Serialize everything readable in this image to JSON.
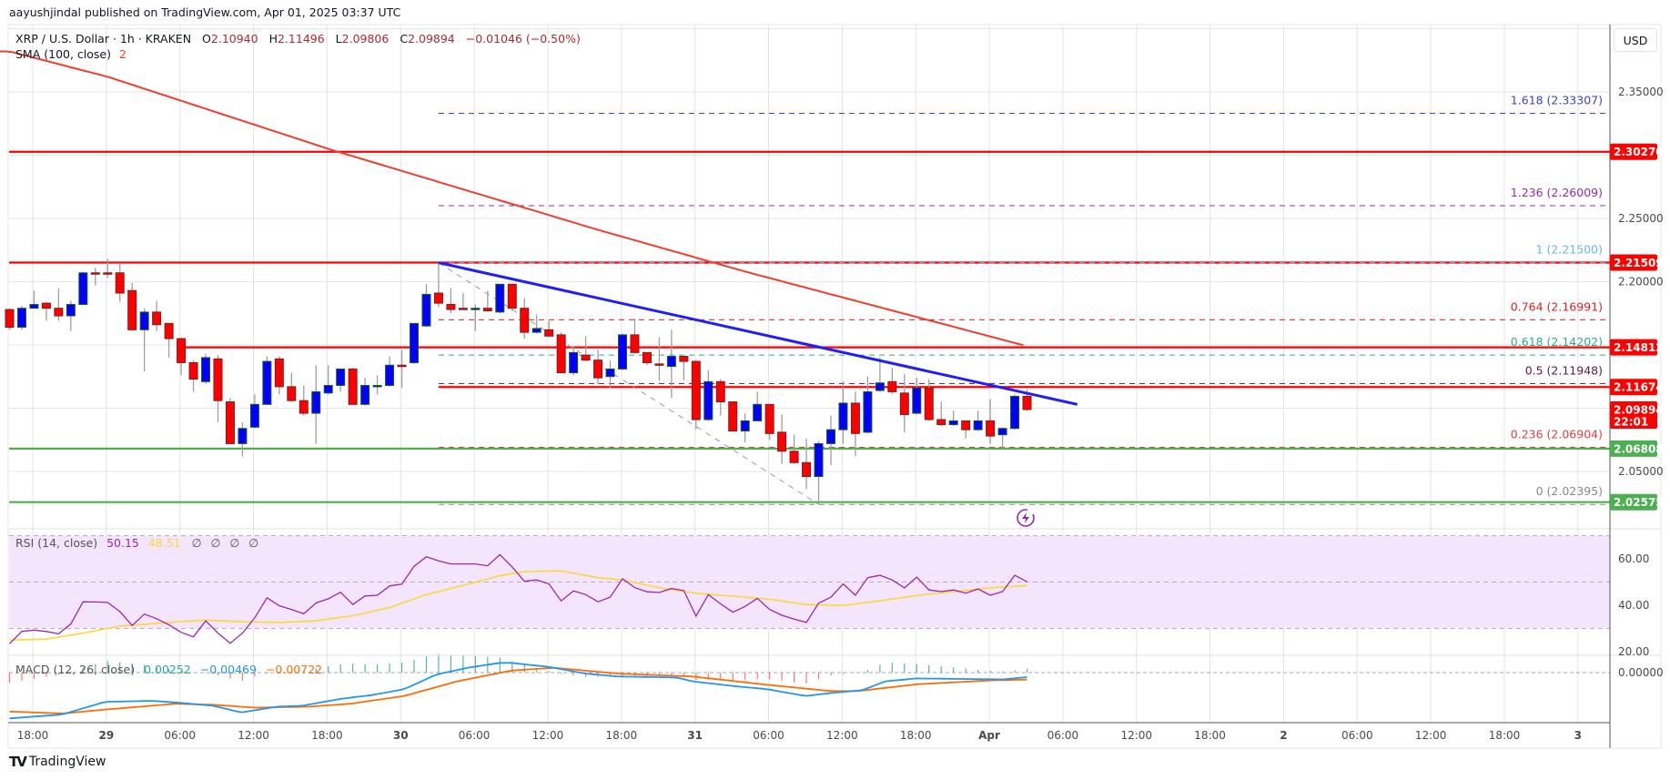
{
  "publisher_line": "aayushjindal published on TradingView.com, Apr 01, 2025 03:37 UTC",
  "legend": {
    "symbol": "XRP / U.S. Dollar · 1h · KRAKEN",
    "o_label": "O",
    "o": "2.10940",
    "h_label": "H",
    "h": "2.11496",
    "l_label": "L",
    "l": "2.09806",
    "c_label": "C",
    "c": "2.09894",
    "change": "−0.01046 (−0.50%)",
    "sma_label": "SMA (100, close)",
    "sma_value": "2"
  },
  "currency_button": "USD",
  "colors": {
    "up": "#0000ff",
    "up_border": "#1b5e20",
    "down": "#ff0000",
    "down_border": "#7b1f1f",
    "wick": "#9e9e9e",
    "sma": "#f23d2d",
    "trend": "#1e1eff",
    "rsi": "#9c27b0",
    "rsi_ma": "#fdd835",
    "macd": "#2196f3",
    "signal": "#ff6d00",
    "hist_up": "#26a69a",
    "hist_down": "#ff5252"
  },
  "chart_data": {
    "type": "candlestick",
    "symbol": "XRP/USD",
    "interval": "1h",
    "exchange": "KRAKEN",
    "ylim": [
      1.985,
      2.4
    ],
    "price_ticks": [
      "2.35000",
      "2.25000",
      "2.20000",
      "2.05000"
    ],
    "price_tick_values": [
      2.35,
      2.25,
      2.2,
      2.05
    ],
    "grid_prices": [
      2.4,
      2.35,
      2.3,
      2.25,
      2.2,
      2.15,
      2.1,
      2.05,
      2.0
    ],
    "time_labels": [
      "18:00",
      "29",
      "06:00",
      "12:00",
      "18:00",
      "30",
      "06:00",
      "12:00",
      "18:00",
      "31",
      "06:00",
      "12:00",
      "18:00",
      "Apr",
      "06:00",
      "12:00",
      "18:00",
      "2",
      "06:00",
      "12:00",
      "18:00",
      "3"
    ],
    "first_candle": "Mar 28 16:00",
    "candles_ohlc": [
      [
        2.178,
        2.179,
        2.162,
        2.164
      ],
      [
        2.164,
        2.181,
        2.162,
        2.179
      ],
      [
        2.179,
        2.193,
        2.179,
        2.182
      ],
      [
        2.183,
        2.184,
        2.169,
        2.179
      ],
      [
        2.179,
        2.195,
        2.169,
        2.173
      ],
      [
        2.173,
        2.185,
        2.161,
        2.182
      ],
      [
        2.182,
        2.208,
        2.182,
        2.207
      ],
      [
        2.207,
        2.211,
        2.197,
        2.2065
      ],
      [
        2.207,
        2.218,
        2.203,
        2.206
      ],
      [
        2.207,
        2.215,
        2.184,
        2.191
      ],
      [
        2.193,
        2.199,
        2.162,
        2.162
      ],
      [
        2.162,
        2.179,
        2.129,
        2.176
      ],
      [
        2.176,
        2.185,
        2.161,
        2.166
      ],
      [
        2.167,
        2.167,
        2.14,
        2.155
      ],
      [
        2.155,
        2.156,
        2.126,
        2.136
      ],
      [
        2.136,
        2.138,
        2.113,
        2.123
      ],
      [
        2.121,
        2.143,
        2.119,
        2.14
      ],
      [
        2.139,
        2.142,
        2.089,
        2.106
      ],
      [
        2.105,
        2.108,
        2.072,
        2.072
      ],
      [
        2.072,
        2.089,
        2.062,
        2.084
      ],
      [
        2.085,
        2.111,
        2.084,
        2.103
      ],
      [
        2.103,
        2.141,
        2.103,
        2.137
      ],
      [
        2.139,
        2.141,
        2.111,
        2.117
      ],
      [
        2.117,
        2.128,
        2.105,
        2.106
      ],
      [
        2.106,
        2.118,
        2.094,
        2.096
      ],
      [
        2.096,
        2.134,
        2.072,
        2.113
      ],
      [
        2.112,
        2.134,
        2.111,
        2.118
      ],
      [
        2.118,
        2.131,
        2.113,
        2.131
      ],
      [
        2.131,
        2.132,
        2.103,
        2.103
      ],
      [
        2.103,
        2.124,
        2.102,
        2.118
      ],
      [
        2.118,
        2.126,
        2.111,
        2.118
      ],
      [
        2.118,
        2.141,
        2.117,
        2.134
      ],
      [
        2.134,
        2.146,
        2.116,
        2.133
      ],
      [
        2.136,
        2.167,
        2.135,
        2.167
      ],
      [
        2.165,
        2.198,
        2.164,
        2.19
      ],
      [
        2.191,
        2.215,
        2.18,
        2.183
      ],
      [
        2.182,
        2.195,
        2.175,
        2.178
      ],
      [
        2.179,
        2.191,
        2.178,
        2.178
      ],
      [
        2.179,
        2.182,
        2.161,
        2.179
      ],
      [
        2.179,
        2.193,
        2.176,
        2.177
      ],
      [
        2.176,
        2.198,
        2.175,
        2.198
      ],
      [
        2.198,
        2.198,
        2.177,
        2.179
      ],
      [
        2.179,
        2.187,
        2.155,
        2.16
      ],
      [
        2.16,
        2.174,
        2.159,
        2.163
      ],
      [
        2.162,
        2.169,
        2.157,
        2.157
      ],
      [
        2.158,
        2.16,
        2.128,
        2.128
      ],
      [
        2.128,
        2.149,
        2.126,
        2.144
      ],
      [
        2.142,
        2.157,
        2.137,
        2.138
      ],
      [
        2.138,
        2.146,
        2.119,
        2.124
      ],
      [
        2.125,
        2.138,
        2.116,
        2.131
      ],
      [
        2.131,
        2.159,
        2.13,
        2.158
      ],
      [
        2.158,
        2.171,
        2.143,
        2.144
      ],
      [
        2.144,
        2.144,
        2.134,
        2.136
      ],
      [
        2.135,
        2.156,
        2.122,
        2.134
      ],
      [
        2.133,
        2.162,
        2.108,
        2.141
      ],
      [
        2.141,
        2.141,
        2.122,
        2.137
      ],
      [
        2.137,
        2.138,
        2.083,
        2.091
      ],
      [
        2.091,
        2.13,
        2.09,
        2.121
      ],
      [
        2.121,
        2.123,
        2.094,
        2.105
      ],
      [
        2.105,
        2.105,
        2.082,
        2.082
      ],
      [
        2.082,
        2.096,
        2.073,
        2.09
      ],
      [
        2.09,
        2.113,
        2.09,
        2.103
      ],
      [
        2.103,
        2.103,
        2.075,
        2.08
      ],
      [
        2.081,
        2.095,
        2.056,
        2.066
      ],
      [
        2.066,
        2.079,
        2.056,
        2.057
      ],
      [
        2.057,
        2.076,
        2.036,
        2.046
      ],
      [
        2.046,
        2.074,
        2.024,
        2.072
      ],
      [
        2.072,
        2.094,
        2.055,
        2.083
      ],
      [
        2.083,
        2.121,
        2.072,
        2.104
      ],
      [
        2.104,
        2.113,
        2.062,
        2.08
      ],
      [
        2.081,
        2.125,
        2.08,
        2.113
      ],
      [
        2.114,
        2.14,
        2.113,
        2.12
      ],
      [
        2.121,
        2.132,
        2.111,
        2.113
      ],
      [
        2.112,
        2.127,
        2.081,
        2.095
      ],
      [
        2.096,
        2.124,
        2.095,
        2.116
      ],
      [
        2.116,
        2.123,
        2.09,
        2.091
      ],
      [
        2.091,
        2.105,
        2.086,
        2.087
      ],
      [
        2.087,
        2.098,
        2.086,
        2.09
      ],
      [
        2.09,
        2.09,
        2.076,
        2.083
      ],
      [
        2.083,
        2.098,
        2.082,
        2.09
      ],
      [
        2.09,
        2.107,
        2.072,
        2.078
      ],
      [
        2.079,
        2.085,
        2.068,
        2.084
      ],
      [
        2.084,
        2.111,
        2.083,
        2.1094
      ],
      [
        2.1094,
        2.11496,
        2.09806,
        2.09894
      ]
    ],
    "sma100_points": [
      [
        1,
        2.382
      ],
      [
        9,
        2.362
      ],
      [
        27,
        2.305
      ],
      [
        49,
        2.241
      ],
      [
        61,
        2.208
      ],
      [
        84,
        2.149
      ]
    ],
    "levels": [
      {
        "price": 2.3027,
        "label": "2.30270",
        "color": "#ff0000",
        "from_index": null
      },
      {
        "price": 2.21509,
        "label": "2.21509",
        "color": "#ff0000",
        "from_index": null
      },
      {
        "price": 2.14812,
        "label": "2.14812",
        "color": "#ff0000",
        "from_index": 15
      },
      {
        "price": 2.11674,
        "label": "2.11674",
        "color": "#ff0000",
        "from_index": 36
      },
      {
        "price": 2.06808,
        "label": "2.06808",
        "color": "#4caf50",
        "from_index": null
      },
      {
        "price": 2.02575,
        "label": "2.02575",
        "color": "#4caf50",
        "from_index": null
      }
    ],
    "last_price": {
      "price": 2.09894,
      "label": "2.09894",
      "countdown": "22:01",
      "color": "#ff0000"
    },
    "fib": {
      "from": [
        36,
        2.215
      ],
      "to": [
        67,
        2.02395
      ],
      "levels": [
        {
          "ratio": "1.618",
          "price": 2.33307,
          "text": "1.618 (2.33307)",
          "color": "#3f3fd0"
        },
        {
          "ratio": "1.236",
          "price": 2.26009,
          "text": "1.236 (2.26009)",
          "color": "#9c27b0"
        },
        {
          "ratio": "1",
          "price": 2.215,
          "text": "1 (2.21500)",
          "color": "#64b5f6"
        },
        {
          "ratio": "0.764",
          "price": 2.16991,
          "text": "0.764 (2.16991)",
          "color": "#e02020"
        },
        {
          "ratio": "0.618",
          "price": 2.14202,
          "text": "0.618 (2.14202)",
          "color": "#26b08a"
        },
        {
          "ratio": "0.5",
          "price": 2.11948,
          "text": "0.5 (2.11948)",
          "color": "#5d1a3a"
        },
        {
          "ratio": "0.236",
          "price": 2.06904,
          "text": "0.236 (2.06904)",
          "color": "#e04040"
        },
        {
          "ratio": "0",
          "price": 2.02395,
          "text": "0 (2.02395)",
          "color": "#888888"
        }
      ]
    },
    "trendline": [
      [
        36,
        2.215
      ],
      [
        88.1,
        2.103
      ]
    ],
    "rsi": {
      "label": "RSI (14, close)",
      "value": "50.15",
      "ma_value": "48.51",
      "extras": [
        "∅",
        "∅",
        "∅",
        "∅"
      ],
      "ticks": [
        "60.00",
        "40.00",
        "20.00"
      ],
      "tick_values": [
        60,
        40,
        20
      ],
      "band": [
        30,
        70
      ],
      "values": [
        23.4,
        28.7,
        29.3,
        28.7,
        27.7,
        32,
        41.5,
        41.4,
        41.2,
        37.3,
        31.3,
        36.2,
        34.2,
        31.6,
        28.3,
        26.4,
        33.3,
        28,
        23.6,
        28,
        34.6,
        43.2,
        39.8,
        38.2,
        36.3,
        41,
        42.8,
        45.6,
        40.3,
        44,
        44.3,
        48.3,
        49.1,
        56.8,
        60.9,
        59.1,
        57.8,
        57.8,
        57.8,
        57,
        61.8,
        56.5,
        50.3,
        50.9,
        49.2,
        41.9,
        46.2,
        44.6,
        41.5,
        43.5,
        51.4,
        47.6,
        45.8,
        45.5,
        47.2,
        46.3,
        35.3,
        44.6,
        40.6,
        37,
        39.5,
        43,
        38.2,
        35.7,
        34,
        32.6,
        40.9,
        43.5,
        49.2,
        44.3,
        51.9,
        52.9,
        50.9,
        47.5,
        52.1,
        46.6,
        45.9,
        46.6,
        45.2,
        47,
        44.3,
        45.9,
        52.9,
        50.15
      ],
      "ma_points": [
        [
          1,
          25
        ],
        [
          4,
          25.4
        ],
        [
          7,
          28
        ],
        [
          10,
          31
        ],
        [
          14,
          32.6
        ],
        [
          17,
          33.6
        ],
        [
          20,
          32.9
        ],
        [
          23,
          32.6
        ],
        [
          26,
          33.3
        ],
        [
          29,
          35.5
        ],
        [
          32,
          39
        ],
        [
          35,
          44.6
        ],
        [
          39,
          49.9
        ],
        [
          41,
          52.8
        ],
        [
          43,
          54.5
        ],
        [
          46,
          54.8
        ],
        [
          49,
          51.9
        ],
        [
          51,
          50.9
        ],
        [
          54,
          47.5
        ],
        [
          57,
          45.2
        ],
        [
          60,
          43.9
        ],
        [
          63,
          42.6
        ],
        [
          66,
          40.3
        ],
        [
          69,
          39.9
        ],
        [
          72,
          41.9
        ],
        [
          75,
          44.2
        ],
        [
          78,
          45.9
        ],
        [
          81,
          47.5
        ],
        [
          84,
          48.51
        ]
      ]
    },
    "macd": {
      "label": "MACD (12, 26, close)",
      "hist_value": "0.00252",
      "macd_value": "−0.00469",
      "signal_value": "−0.00722",
      "zero_tick": "0.00000",
      "macd_points": [
        [
          1,
          -0.047
        ],
        [
          5.3,
          -0.043
        ],
        [
          8.8,
          -0.03
        ],
        [
          12.7,
          -0.029
        ],
        [
          14.9,
          -0.031
        ],
        [
          17.6,
          -0.034
        ],
        [
          19.9,
          -0.041
        ],
        [
          22.8,
          -0.035
        ],
        [
          24.9,
          -0.034
        ],
        [
          28,
          -0.027
        ],
        [
          30.6,
          -0.023
        ],
        [
          33.2,
          -0.017
        ],
        [
          35.8,
          -0.002
        ],
        [
          38.4,
          0.005
        ],
        [
          41,
          0.01
        ],
        [
          41.9,
          0.01
        ],
        [
          44.9,
          0.006
        ],
        [
          48,
          -0.001
        ],
        [
          50.6,
          -0.004
        ],
        [
          55.4,
          -0.005
        ],
        [
          56.7,
          -0.009
        ],
        [
          60.2,
          -0.014
        ],
        [
          62.8,
          -0.017
        ],
        [
          65.9,
          -0.024
        ],
        [
          68,
          -0.021
        ],
        [
          70.6,
          -0.018
        ],
        [
          72.4,
          -0.009
        ],
        [
          75,
          -0.006
        ],
        [
          82,
          -0.007
        ],
        [
          84,
          -0.00469
        ]
      ],
      "signal_points": [
        [
          1,
          -0.04
        ],
        [
          5.3,
          -0.042
        ],
        [
          8.8,
          -0.038
        ],
        [
          14.5,
          -0.032
        ],
        [
          17.6,
          -0.033
        ],
        [
          21,
          -0.036
        ],
        [
          25.4,
          -0.035
        ],
        [
          28.8,
          -0.032
        ],
        [
          33.2,
          -0.024
        ],
        [
          37.5,
          -0.009
        ],
        [
          41.9,
          0.002
        ],
        [
          45.4,
          0.005
        ],
        [
          50.6,
          -0.001
        ],
        [
          56.7,
          -0.004
        ],
        [
          62.4,
          -0.012
        ],
        [
          68,
          -0.019
        ],
        [
          70.2,
          -0.019
        ],
        [
          75,
          -0.012
        ],
        [
          81.1,
          -0.008
        ],
        [
          84,
          -0.00722
        ]
      ]
    }
  },
  "footer_logo": "TradingView"
}
